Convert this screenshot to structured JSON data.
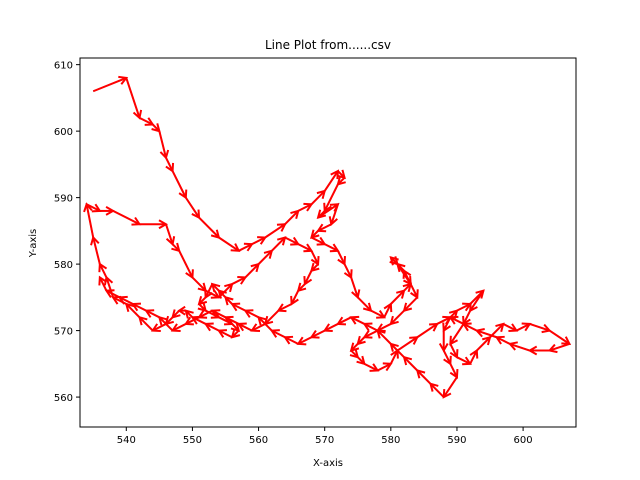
{
  "chart_data": {
    "type": "line",
    "title": "Line Plot from......csv",
    "xlabel": "X-axis",
    "ylabel": "Y-axis",
    "xlim": [
      533,
      608
    ],
    "ylim": [
      555.5,
      611
    ],
    "xticks": [
      540,
      550,
      560,
      570,
      580,
      590,
      600
    ],
    "yticks": [
      560,
      570,
      580,
      590,
      600,
      610
    ],
    "grid": false,
    "line_color": "#1f77b4",
    "arrow_color": "#ff0000",
    "series": [
      {
        "x": [
          535,
          540,
          542,
          544,
          545,
          546,
          547,
          549,
          551,
          554,
          557,
          559,
          561,
          564,
          566,
          568,
          570,
          572,
          573,
          572,
          570,
          569,
          572,
          571,
          569,
          568,
          570,
          572,
          573,
          574,
          575,
          577,
          579,
          580,
          582,
          583,
          582,
          581,
          580,
          581,
          583,
          584,
          582,
          580,
          578,
          576,
          575,
          574,
          575,
          576,
          578,
          580,
          581,
          584,
          587,
          589,
          590,
          592,
          594,
          592,
          591,
          589,
          590,
          592,
          593,
          595,
          597,
          599,
          601,
          604,
          607,
          604,
          601,
          598,
          596,
          593,
          591,
          589,
          588,
          588,
          589,
          590,
          588,
          586,
          584,
          582,
          580,
          578,
          576,
          574,
          572,
          570,
          568,
          566,
          564,
          562,
          560,
          558,
          556,
          555,
          554,
          553,
          552,
          551,
          552,
          554,
          556,
          557,
          556,
          554,
          552,
          550,
          549,
          548,
          547,
          546,
          544,
          542,
          540,
          538,
          537,
          536,
          535,
          534,
          536,
          538,
          542,
          546,
          547,
          548,
          550,
          552,
          554,
          556,
          558,
          560,
          562,
          564,
          566,
          568,
          569,
          568,
          567,
          566,
          565,
          563,
          561,
          559,
          557,
          555,
          553,
          551,
          549,
          547,
          545,
          543,
          541,
          539,
          537,
          536
        ],
        "y": [
          606,
          608,
          602,
          601,
          600,
          596,
          594,
          590,
          587,
          584,
          582,
          583,
          584,
          586,
          588,
          589,
          591,
          594,
          593,
          592,
          588,
          587,
          589,
          586,
          585,
          584,
          583,
          582,
          580,
          578,
          575,
          573,
          572,
          574,
          576,
          577,
          579,
          580,
          581,
          580,
          577,
          575,
          573,
          571,
          570,
          569,
          568,
          567,
          566,
          565,
          564,
          565,
          567,
          569,
          571,
          572,
          573,
          574,
          576,
          573,
          571,
          568,
          566,
          565,
          567,
          569,
          571,
          570,
          571,
          570,
          568,
          567,
          567,
          568,
          569,
          570,
          571,
          572,
          570,
          567,
          565,
          563,
          560,
          562,
          564,
          566,
          568,
          570,
          571,
          572,
          571,
          570,
          569,
          568,
          569,
          570,
          572,
          573,
          574,
          575,
          576,
          577,
          575,
          574,
          573,
          572,
          571,
          570,
          569,
          570,
          571,
          572,
          573,
          573,
          572,
          571,
          570,
          572,
          574,
          575,
          578,
          580,
          584,
          589,
          588,
          588,
          586,
          586,
          583,
          582,
          578,
          576,
          575,
          577,
          578,
          580,
          582,
          584,
          583,
          582,
          580,
          579,
          577,
          576,
          574,
          573,
          571,
          570,
          571,
          572,
          573,
          572,
          571,
          570,
          572,
          573,
          574,
          575,
          576,
          578
        ]
      }
    ]
  }
}
